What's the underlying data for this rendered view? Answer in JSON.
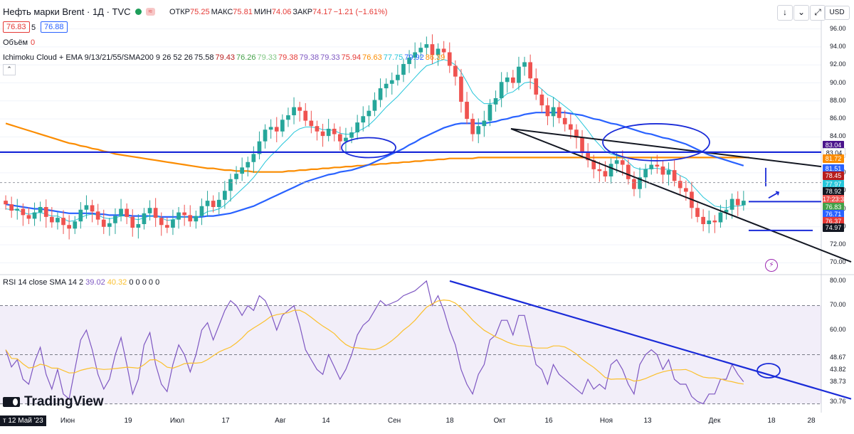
{
  "header": {
    "title": "Нефть марки Brent · 1Д · TVC",
    "wave_glyph": "≈",
    "ohlc": [
      {
        "k": "ОТКР",
        "v": "75.25"
      },
      {
        "k": "МАКС",
        "v": "75.81"
      },
      {
        "k": "МИН",
        "v": "74.06"
      },
      {
        "k": "ЗАКР",
        "v": "74.17"
      },
      {
        "k": "",
        "v": "−1.21 (−1.61%)"
      }
    ],
    "sell": "76.83",
    "lot": "5",
    "buy": "76.88"
  },
  "toolbar": {
    "down": "↓",
    "collapse": "⌄",
    "snapshot": "◯",
    "expand": "⤢",
    "currency": "USD",
    "collapse_panel": "⌃"
  },
  "volume": {
    "label": "Объём",
    "value": "0"
  },
  "ichimoku": {
    "label": "Ichimoku Cloud + EMA 9/13/21/55/SMA200 9 26 52 26",
    "values": [
      {
        "v": "75.58",
        "c": "#131722"
      },
      {
        "v": "79.43",
        "c": "#b71c1c"
      },
      {
        "v": "76.26",
        "c": "#43a047"
      },
      {
        "v": "79.33",
        "c": "#81c784"
      },
      {
        "v": "79.38",
        "c": "#e53935"
      },
      {
        "v": "79.38",
        "c": "#7e57c2"
      },
      {
        "v": "79.33",
        "c": "#7e57c2"
      },
      {
        "v": "75.94",
        "c": "#e53935"
      },
      {
        "v": "76.63",
        "c": "#fb8c00"
      },
      {
        "v": "77.75",
        "c": "#26c6da"
      },
      {
        "v": "79.92",
        "c": "#2962ff"
      },
      {
        "v": "86.39",
        "c": "#fb8c00"
      }
    ]
  },
  "rsi_label": "RSI 14 close SMA 14 2",
  "rsi_values": [
    {
      "v": "39.02",
      "c": "#7e57c2"
    },
    {
      "v": "40.32",
      "c": "#fbc02d"
    },
    {
      "v": "0",
      "c": "#131722"
    },
    {
      "v": "0",
      "c": "#131722"
    },
    {
      "v": "0",
      "c": "#131722"
    },
    {
      "v": "0",
      "c": "#131722"
    },
    {
      "v": "0",
      "c": "#131722"
    }
  ],
  "logo": "TradingView",
  "bottom_date": "т 12 Май '23",
  "price_badges": [
    {
      "v": "83.04",
      "c": "#4a148c",
      "y": 83.04
    },
    {
      "v": "83.04",
      "c": "#ffffff",
      "y": 82.3,
      "t": "#131722"
    },
    {
      "v": "81.72",
      "c": "#fb8c00",
      "y": 81.6
    },
    {
      "v": "81.51",
      "c": "#2962ff",
      "y": 80.5
    },
    {
      "v": "78.45",
      "c": "#b71c1c",
      "y": 79.7
    },
    {
      "v": "77.97",
      "c": "#26c6da",
      "y": 78.7
    },
    {
      "v": "78.92",
      "c": "#131722",
      "y": 77.9
    },
    {
      "v": "17:23:34",
      "c": "#ef5350",
      "y": 77.1
    },
    {
      "v": "76.83",
      "c": "#43a047",
      "y": 76.2
    },
    {
      "v": "76.71",
      "c": "#2962ff",
      "y": 75.4
    },
    {
      "v": "76.37",
      "c": "#e53935",
      "y": 74.6
    },
    {
      "v": "74.97",
      "c": "#131722",
      "y": 73.9
    }
  ],
  "chart_data": {
    "type": "candlestick",
    "x_labels": [
      "Июн",
      "19",
      "Июл",
      "17",
      "Авг",
      "14",
      "Сен",
      "18",
      "Окт",
      "16",
      "Ноя",
      "13",
      "Дек",
      "18",
      "28"
    ],
    "price_axis": [
      96,
      94,
      92,
      90,
      88,
      86,
      84,
      82,
      80,
      78,
      76,
      74,
      72,
      70
    ],
    "price_ylim": [
      69.0,
      97.0
    ],
    "rsi_axis": [
      80,
      70,
      60,
      48.67,
      43.82,
      38.73,
      30.76
    ],
    "rsi_ylim": [
      27,
      82
    ],
    "rsi_levels": [
      70,
      50,
      30
    ],
    "close": [
      76.5,
      75.8,
      76.0,
      75.3,
      74.9,
      75.6,
      76.2,
      75.1,
      74.5,
      75.0,
      74.2,
      73.8,
      74.6,
      75.9,
      76.4,
      75.7,
      74.8,
      74.0,
      74.4,
      75.2,
      76.0,
      75.1,
      73.9,
      74.3,
      75.5,
      76.1,
      75.0,
      74.2,
      73.9,
      74.8,
      75.6,
      75.3,
      74.6,
      75.2,
      76.3,
      76.9,
      76.2,
      77.0,
      78.0,
      79.3,
      79.9,
      80.6,
      81.2,
      82.1,
      83.5,
      84.8,
      85.1,
      84.6,
      85.9,
      86.4,
      87.3,
      86.9,
      85.8,
      85.2,
      84.6,
      84.1,
      84.9,
      84.3,
      83.5,
      83.9,
      84.5,
      85.6,
      86.3,
      86.9,
      88.1,
      89.4,
      89.9,
      90.3,
      90.9,
      92.1,
      92.8,
      93.4,
      93.9,
      94.3,
      93.1,
      93.8,
      93.4,
      91.9,
      90.7,
      87.9,
      86.0,
      84.3,
      85.2,
      85.8,
      87.6,
      88.3,
      90.1,
      90.6,
      90.0,
      91.8,
      92.3,
      90.5,
      88.7,
      87.5,
      86.3,
      87.3,
      86.1,
      85.4,
      84.8,
      83.9,
      82.2,
      81.4,
      80.4,
      80.2,
      79.6,
      81.0,
      81.4,
      80.9,
      79.3,
      78.2,
      79.5,
      80.4,
      80.9,
      80.7,
      79.8,
      80.3,
      79.1,
      78.3,
      77.9,
      76.1,
      75.1,
      74.3,
      74.7,
      74.5,
      75.6,
      75.9,
      77.1,
      76.4,
      76.9
    ],
    "ema9": [
      76.0,
      75.9,
      75.9,
      75.6,
      75.4,
      75.5,
      75.6,
      75.4,
      75.2,
      75.2,
      74.9,
      74.6,
      74.7,
      75.0,
      75.3,
      75.4,
      75.3,
      75.0,
      74.9,
      75.0,
      75.2,
      75.2,
      74.9,
      74.8,
      75.0,
      75.2,
      75.2,
      75.0,
      74.7,
      74.8,
      75.0,
      75.1,
      75.0,
      75.0,
      75.3,
      75.7,
      75.8,
      76.0,
      76.4,
      77.0,
      77.6,
      78.2,
      78.8,
      79.5,
      80.3,
      81.2,
      81.9,
      82.5,
      83.2,
      83.8,
      84.5,
      84.9,
      85.1,
      85.1,
      85.0,
      84.8,
      84.8,
      84.7,
      84.4,
      84.3,
      84.3,
      84.6,
      84.9,
      85.3,
      85.9,
      86.6,
      87.3,
      87.9,
      88.5,
      89.2,
      89.9,
      90.6,
      91.3,
      91.9,
      92.1,
      92.4,
      92.6,
      92.4,
      92.0,
      91.2,
      90.1,
      88.9,
      88.2,
      87.7,
      87.7,
      87.8,
      88.3,
      88.8,
      89.0,
      89.5,
      90.0,
      90.1,
      89.8,
      89.3,
      88.7,
      88.4,
      87.9,
      87.4,
      86.9,
      86.3,
      85.5,
      84.7,
      83.8,
      83.1,
      82.4,
      82.1,
      81.9,
      81.7,
      81.2,
      80.6,
      80.4,
      80.4,
      80.5,
      80.5,
      80.4,
      80.4,
      80.1,
      79.7,
      79.4,
      78.7,
      78.0,
      77.3,
      76.8,
      76.3,
      76.2,
      76.1,
      76.3,
      76.3,
      76.4
    ],
    "ema55": [
      76.5,
      76.4,
      76.3,
      76.2,
      76.1,
      76.0,
      76.0,
      75.9,
      75.8,
      75.7,
      75.6,
      75.5,
      75.5,
      75.5,
      75.5,
      75.5,
      75.4,
      75.4,
      75.3,
      75.3,
      75.3,
      75.3,
      75.2,
      75.2,
      75.2,
      75.2,
      75.2,
      75.1,
      75.1,
      75.1,
      75.1,
      75.1,
      75.1,
      75.1,
      75.1,
      75.2,
      75.2,
      75.3,
      75.4,
      75.5,
      75.7,
      75.9,
      76.1,
      76.3,
      76.6,
      76.9,
      77.2,
      77.5,
      77.8,
      78.1,
      78.4,
      78.7,
      79.0,
      79.2,
      79.4,
      79.6,
      79.8,
      79.9,
      80.1,
      80.2,
      80.3,
      80.5,
      80.7,
      80.9,
      81.2,
      81.5,
      81.8,
      82.1,
      82.4,
      82.7,
      83.1,
      83.4,
      83.8,
      84.1,
      84.4,
      84.7,
      85.0,
      85.2,
      85.4,
      85.5,
      85.5,
      85.5,
      85.5,
      85.5,
      85.6,
      85.7,
      85.9,
      86.0,
      86.2,
      86.3,
      86.5,
      86.6,
      86.7,
      86.7,
      86.7,
      86.7,
      86.7,
      86.7,
      86.6,
      86.5,
      86.4,
      86.2,
      86.0,
      85.9,
      85.7,
      85.5,
      85.4,
      85.2,
      85.0,
      84.8,
      84.6,
      84.4,
      84.3,
      84.1,
      83.9,
      83.8,
      83.6,
      83.4,
      83.2,
      82.9,
      82.6,
      82.3,
      82.0,
      81.8,
      81.6,
      81.4,
      81.2,
      81.0,
      80.8
    ],
    "sma200": [
      85.5,
      85.3,
      85.1,
      84.9,
      84.7,
      84.5,
      84.3,
      84.1,
      83.9,
      83.7,
      83.5,
      83.3,
      83.2,
      83.0,
      82.9,
      82.7,
      82.6,
      82.4,
      82.3,
      82.1,
      82.0,
      81.9,
      81.8,
      81.7,
      81.6,
      81.5,
      81.4,
      81.3,
      81.2,
      81.1,
      81.0,
      80.9,
      80.8,
      80.7,
      80.6,
      80.5,
      80.5,
      80.4,
      80.3,
      80.3,
      80.2,
      80.2,
      80.2,
      80.1,
      80.1,
      80.1,
      80.1,
      80.1,
      80.1,
      80.2,
      80.2,
      80.3,
      80.3,
      80.4,
      80.4,
      80.5,
      80.5,
      80.6,
      80.6,
      80.7,
      80.7,
      80.8,
      80.8,
      80.9,
      80.9,
      81.0,
      81.0,
      81.1,
      81.1,
      81.2,
      81.2,
      81.3,
      81.3,
      81.4,
      81.4,
      81.5,
      81.5,
      81.6,
      81.6,
      81.6,
      81.6,
      81.6,
      81.7,
      81.7,
      81.7,
      81.7,
      81.7,
      81.7,
      81.7,
      81.7,
      81.7,
      81.7,
      81.7,
      81.7,
      81.7,
      81.7,
      81.7,
      81.7,
      81.7,
      81.7,
      81.7,
      81.7,
      81.7,
      81.7,
      81.7,
      81.7,
      81.7,
      81.7,
      81.7,
      81.7,
      81.7,
      81.7,
      81.7,
      81.7,
      81.7,
      81.7,
      81.7,
      81.7,
      81.7,
      81.7,
      81.7,
      81.7,
      81.7,
      81.7,
      81.7,
      81.7,
      81.7,
      81.7,
      81.7,
      81.7
    ],
    "rsi": [
      52,
      45,
      48,
      40,
      38,
      47,
      53,
      42,
      36,
      44,
      34,
      32,
      44,
      56,
      60,
      52,
      42,
      36,
      40,
      50,
      57,
      46,
      34,
      40,
      54,
      59,
      46,
      38,
      35,
      46,
      54,
      50,
      43,
      50,
      60,
      63,
      56,
      62,
      68,
      72,
      70,
      66,
      70,
      68,
      74,
      72,
      67,
      60,
      66,
      68,
      70,
      62,
      52,
      48,
      44,
      42,
      50,
      45,
      40,
      44,
      50,
      58,
      62,
      64,
      68,
      72,
      70,
      71,
      72,
      74,
      75,
      76,
      78,
      80,
      70,
      74,
      68,
      60,
      54,
      44,
      38,
      34,
      42,
      46,
      56,
      58,
      64,
      64,
      58,
      66,
      66,
      56,
      46,
      44,
      38,
      46,
      42,
      40,
      38,
      36,
      34,
      40,
      36,
      38,
      36,
      46,
      48,
      44,
      38,
      34,
      46,
      50,
      52,
      50,
      44,
      48,
      40,
      38,
      38,
      33,
      31,
      30,
      34,
      34,
      40,
      40,
      46,
      42,
      39
    ]
  }
}
